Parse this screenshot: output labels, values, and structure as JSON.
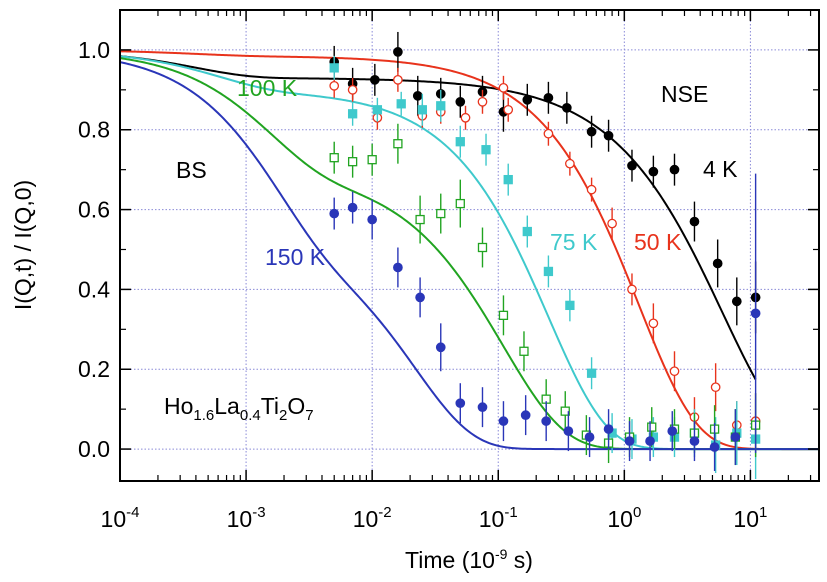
{
  "chart_data": {
    "type": "scatter",
    "xlabel": "Time (10",
    "xlabel_sup": "-9",
    "xlabel_end": " s)",
    "ylabel": "I(Q,t) / I(Q,0)",
    "xscale": "log",
    "xlim": [
      0.0001,
      35
    ],
    "ylim": [
      -0.08,
      1.1
    ],
    "grid": true,
    "x_ticks": [
      {
        "exp": "-4"
      },
      {
        "exp": "-3"
      },
      {
        "exp": "-2"
      },
      {
        "exp": "-1"
      },
      {
        "exp": "0"
      },
      {
        "exp": "1"
      }
    ],
    "y_tick_labels": [
      "0.0",
      "0.2",
      "0.4",
      "0.6",
      "0.8",
      "1.0"
    ],
    "y_tick_values": [
      0,
      0.2,
      0.4,
      0.6,
      0.8,
      1.0
    ],
    "annotations": {
      "nse": "NSE",
      "bs": "BS",
      "formula": {
        "p1": "Ho",
        "s1": "1.6",
        "p2": "La",
        "s2": "0.4",
        "p3": "Ti",
        "s3": "2",
        "p4": "O",
        "s4": "7"
      }
    },
    "series": [
      {
        "label": "4 K",
        "color": "#000000",
        "marker": "filled-circle",
        "fit": {
          "A": 0.93,
          "tau": 6.0,
          "beta": 0.85,
          "B": 0.07,
          "tau2": 0.0004
        },
        "fit_xmax": 11,
        "points": [
          [
            0.005,
            0.97,
            0.04
          ],
          [
            0.007,
            0.915,
            0.04
          ],
          [
            0.0105,
            0.925,
            0.04
          ],
          [
            0.016,
            0.995,
            0.05
          ],
          [
            0.023,
            0.885,
            0.05
          ],
          [
            0.035,
            0.89,
            0.04
          ],
          [
            0.05,
            0.87,
            0.04
          ],
          [
            0.075,
            0.895,
            0.04
          ],
          [
            0.11,
            0.845,
            0.05
          ],
          [
            0.17,
            0.875,
            0.04
          ],
          [
            0.25,
            0.88,
            0.04
          ],
          [
            0.35,
            0.855,
            0.04
          ],
          [
            0.55,
            0.795,
            0.04
          ],
          [
            0.75,
            0.785,
            0.04
          ],
          [
            1.15,
            0.71,
            0.04
          ],
          [
            1.7,
            0.695,
            0.04
          ],
          [
            2.5,
            0.7,
            0.04
          ],
          [
            3.6,
            0.57,
            0.05
          ],
          [
            5.5,
            0.465,
            0.06
          ],
          [
            7.8,
            0.37,
            0.06
          ],
          [
            11,
            0.38,
            0.09
          ]
        ]
      },
      {
        "label": "50 K",
        "color": "#e8331c",
        "marker": "open-circle",
        "fit": {
          "A": 0.985,
          "tau": 1.3,
          "beta": 0.95,
          "B": 0.015,
          "tau2": 0.0004
        },
        "fit_xmax": 35,
        "points": [
          [
            0.005,
            0.91,
            0.03
          ],
          [
            0.007,
            0.9,
            0.03
          ],
          [
            0.011,
            0.83,
            0.03
          ],
          [
            0.016,
            0.925,
            0.03
          ],
          [
            0.025,
            0.835,
            0.03
          ],
          [
            0.035,
            0.845,
            0.03
          ],
          [
            0.055,
            0.83,
            0.03
          ],
          [
            0.075,
            0.87,
            0.03
          ],
          [
            0.11,
            0.905,
            0.03
          ],
          [
            0.12,
            0.85,
            0.03
          ],
          [
            0.25,
            0.79,
            0.03
          ],
          [
            0.37,
            0.715,
            0.03
          ],
          [
            0.55,
            0.65,
            0.03
          ],
          [
            0.8,
            0.565,
            0.04
          ],
          [
            1.15,
            0.4,
            0.04
          ],
          [
            1.7,
            0.315,
            0.05
          ],
          [
            2.5,
            0.195,
            0.05
          ],
          [
            3.6,
            0.08,
            0.05
          ],
          [
            5.3,
            0.155,
            0.06
          ],
          [
            7.8,
            0.06,
            0.06
          ],
          [
            11,
            0.07,
            0.07
          ]
        ]
      },
      {
        "label": "75 K",
        "color": "#3fc9cc",
        "marker": "filled-square",
        "fit": {
          "A": 0.9,
          "tau": 0.25,
          "beta": 0.95,
          "B": 0.1,
          "tau2": 0.0006
        },
        "fit_xmax": 35,
        "points": [
          [
            0.005,
            0.955,
            0.03
          ],
          [
            0.007,
            0.84,
            0.03
          ],
          [
            0.011,
            0.85,
            0.03
          ],
          [
            0.017,
            0.865,
            0.03
          ],
          [
            0.025,
            0.85,
            0.04
          ],
          [
            0.035,
            0.86,
            0.04
          ],
          [
            0.05,
            0.77,
            0.04
          ],
          [
            0.08,
            0.75,
            0.04
          ],
          [
            0.12,
            0.675,
            0.04
          ],
          [
            0.17,
            0.545,
            0.04
          ],
          [
            0.25,
            0.445,
            0.04
          ],
          [
            0.37,
            0.36,
            0.04
          ],
          [
            0.55,
            0.19,
            0.04
          ],
          [
            0.8,
            0.04,
            0.05
          ],
          [
            1.15,
            0.025,
            0.05
          ],
          [
            1.7,
            0.03,
            0.05
          ],
          [
            2.5,
            0.03,
            0.05
          ],
          [
            3.6,
            0.04,
            0.06
          ],
          [
            5.3,
            0.01,
            0.07
          ],
          [
            7.8,
            0.04,
            0.08
          ],
          [
            11,
            0.025,
            0.1
          ]
        ]
      },
      {
        "label": "100 K",
        "color": "#21a421",
        "marker": "open-square",
        "fit": {
          "A": 0.7,
          "tau": 0.11,
          "beta": 0.9,
          "B": 0.3,
          "tau2": 0.0015
        },
        "fit_xmax": 35,
        "points": [
          [
            0.005,
            0.73,
            0.04
          ],
          [
            0.007,
            0.72,
            0.04
          ],
          [
            0.01,
            0.725,
            0.04
          ],
          [
            0.016,
            0.765,
            0.05
          ],
          [
            0.024,
            0.575,
            0.06
          ],
          [
            0.035,
            0.59,
            0.05
          ],
          [
            0.05,
            0.615,
            0.06
          ],
          [
            0.075,
            0.505,
            0.05
          ],
          [
            0.11,
            0.335,
            0.05
          ],
          [
            0.16,
            0.245,
            0.05
          ],
          [
            0.24,
            0.125,
            0.05
          ],
          [
            0.34,
            0.095,
            0.05
          ],
          [
            0.5,
            0.035,
            0.05
          ],
          [
            0.75,
            0.015,
            0.05
          ],
          [
            1.1,
            0.03,
            0.05
          ],
          [
            1.65,
            0.055,
            0.05
          ],
          [
            2.5,
            0.05,
            0.05
          ],
          [
            3.6,
            0.04,
            0.05
          ],
          [
            5.2,
            0.05,
            0.06
          ],
          [
            7.6,
            0.03,
            0.07
          ],
          [
            11,
            0.06,
            0.08
          ]
        ]
      },
      {
        "label": "150 K",
        "color": "#2a36b8",
        "marker": "filled-circle",
        "fit": {
          "A": 0.55,
          "tau": 0.022,
          "beta": 0.95,
          "B": 0.45,
          "tau2": 0.0016
        },
        "fit_xmax": 35,
        "points": [
          [
            0.005,
            0.59,
            0.04
          ],
          [
            0.007,
            0.605,
            0.04
          ],
          [
            0.01,
            0.575,
            0.05
          ],
          [
            0.016,
            0.455,
            0.05
          ],
          [
            0.024,
            0.38,
            0.05
          ],
          [
            0.035,
            0.255,
            0.06
          ],
          [
            0.05,
            0.115,
            0.05
          ],
          [
            0.075,
            0.105,
            0.05
          ],
          [
            0.11,
            0.07,
            0.05
          ],
          [
            0.165,
            0.085,
            0.05
          ],
          [
            0.24,
            0.07,
            0.05
          ],
          [
            0.36,
            0.045,
            0.05
          ],
          [
            0.53,
            0.03,
            0.05
          ],
          [
            0.75,
            0.05,
            0.05
          ],
          [
            1.1,
            0.02,
            0.05
          ],
          [
            1.6,
            0.02,
            0.05
          ],
          [
            2.4,
            0.045,
            0.05
          ],
          [
            3.6,
            0.02,
            0.05
          ],
          [
            5.2,
            0.005,
            0.06
          ],
          [
            7.6,
            0.03,
            0.07
          ],
          [
            11,
            0.34,
            0.35
          ]
        ]
      }
    ]
  }
}
